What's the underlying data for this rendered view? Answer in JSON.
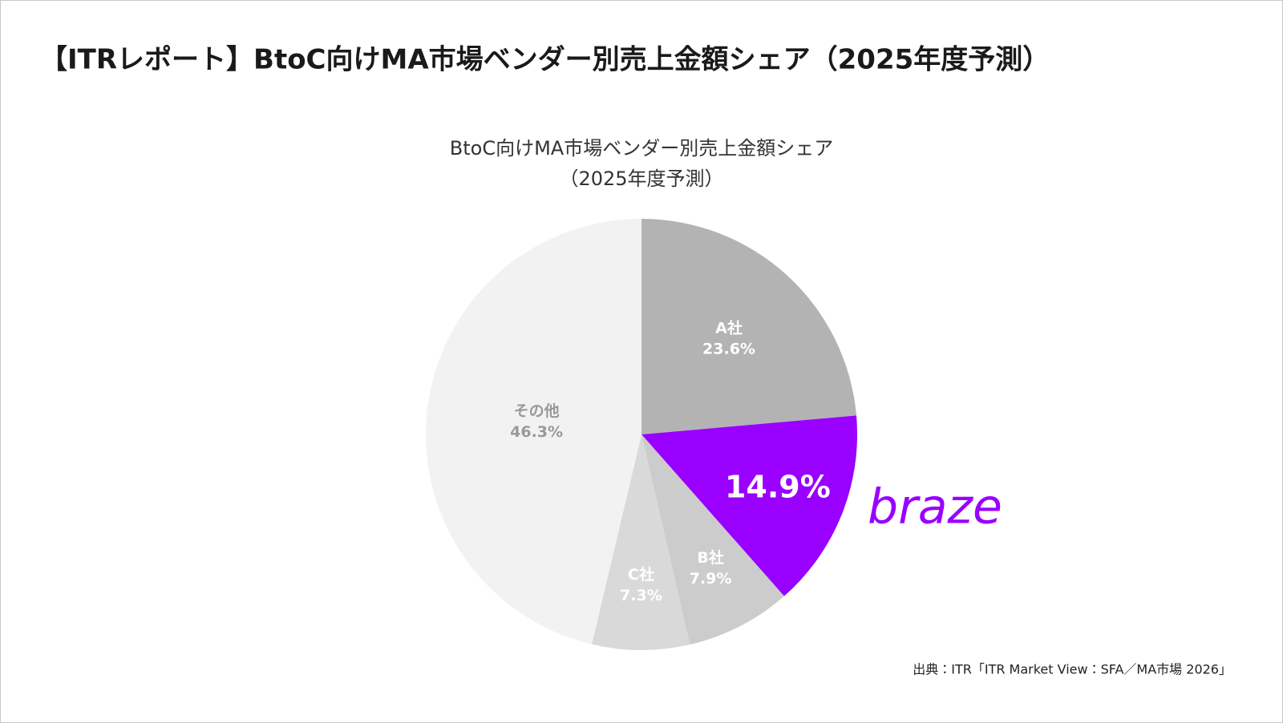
{
  "header": {
    "title": "【ITRレポート】BtoC向けMA市場ベンダー別売上金額シェア（2025年度予測）"
  },
  "chart_data": {
    "type": "pie",
    "title": "BtoC向けMA市場ベンダー別売上金額シェア",
    "subtitle": "（2025年度予測）",
    "categories": [
      "A社",
      "braze",
      "B社",
      "C社",
      "その他"
    ],
    "values": [
      23.6,
      14.9,
      7.9,
      7.3,
      46.3
    ],
    "value_labels": [
      "23.6%",
      "14.9%",
      "7.9%",
      "7.3%",
      "46.3%"
    ],
    "colors": [
      "#b3b3b3",
      "#9900ff",
      "#cccccc",
      "#d9d9d9",
      "#f2f2f2"
    ]
  },
  "source": "出典：ITR「ITR Market View：SFA／MA市場 2026」"
}
